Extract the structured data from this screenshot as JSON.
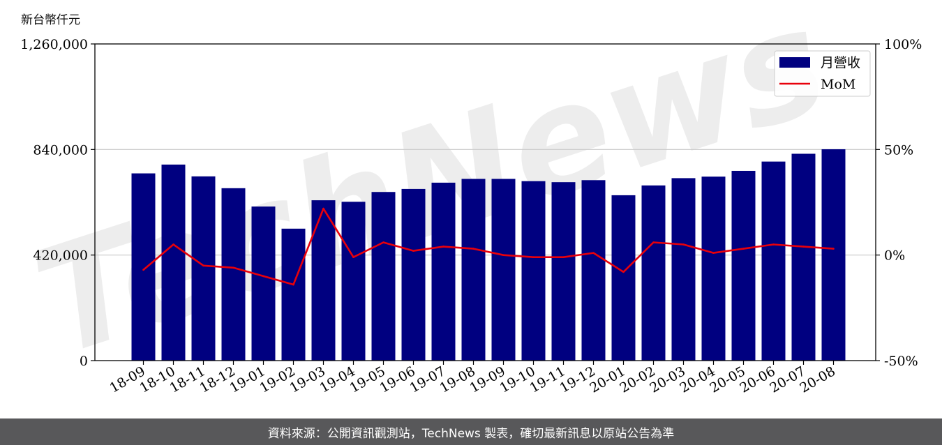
{
  "page": {
    "unit_label": "新台幣仟元",
    "footer": "資料來源：公開資訊觀測站，TechNews 製表，確切最新訊息以原站公告為準",
    "watermark": "TechNews"
  },
  "chart_data": {
    "type": "bar",
    "categories": [
      "18-09",
      "18-10",
      "18-11",
      "18-12",
      "19-01",
      "19-02",
      "19-03",
      "19-04",
      "19-05",
      "19-06",
      "19-07",
      "19-08",
      "19-09",
      "19-10",
      "19-11",
      "19-12",
      "20-01",
      "20-02",
      "20-03",
      "20-04",
      "20-05",
      "20-06",
      "20-07",
      "20-08"
    ],
    "series": [
      {
        "name": "月營收",
        "kind": "bar",
        "axis": "left",
        "color": "#000080",
        "values": [
          745000,
          780000,
          733000,
          686000,
          613000,
          525000,
          638000,
          632000,
          671000,
          683000,
          708000,
          723000,
          723000,
          714000,
          710000,
          718000,
          658000,
          697000,
          726000,
          732000,
          755000,
          792000,
          823000,
          841000
        ]
      },
      {
        "name": "MoM",
        "kind": "line",
        "axis": "right",
        "color": "#e8000b",
        "values": [
          -7,
          5,
          -5,
          -6,
          -10,
          -14,
          22,
          -1,
          6,
          2,
          4,
          3,
          0,
          -1,
          -1,
          1,
          -8,
          6,
          5,
          1,
          3,
          5,
          4,
          3
        ]
      }
    ],
    "y_left": {
      "min": 0,
      "max": 1260000,
      "ticks": [
        0,
        420000,
        840000,
        1260000
      ],
      "tick_labels": [
        "0",
        "420,000",
        "840,000",
        "1,260,000"
      ]
    },
    "y_right": {
      "min": -50,
      "max": 100,
      "ticks": [
        -50,
        0,
        50,
        100
      ],
      "tick_labels": [
        "-50%",
        "0%",
        "50%",
        "100%"
      ]
    },
    "grid": "horizontal",
    "legend": "top-right"
  }
}
